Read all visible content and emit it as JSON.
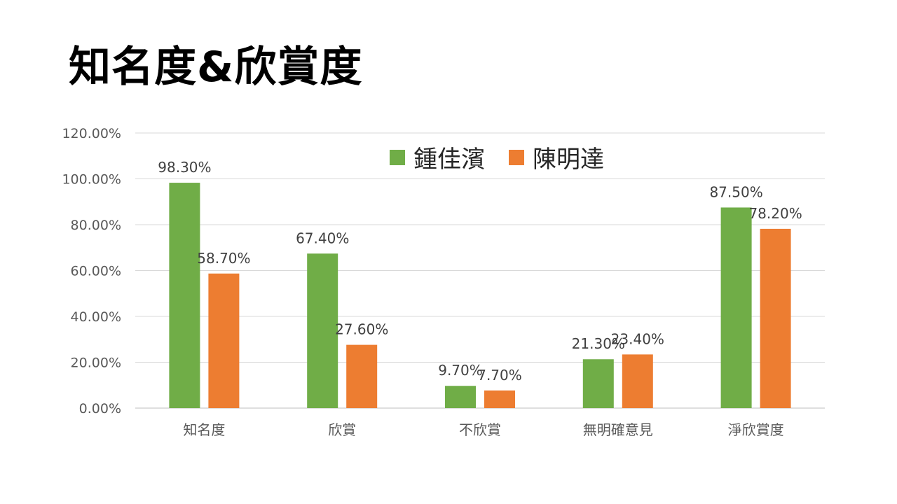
{
  "page": {
    "title": "知名度&欣賞度"
  },
  "chart_data": {
    "type": "bar",
    "title": "",
    "xlabel": "",
    "ylabel": "",
    "categories": [
      "知名度",
      "欣賞",
      "不欣賞",
      "無明確意見",
      "淨欣賞度"
    ],
    "series": [
      {
        "name": "鍾佳濱",
        "color": "#70AD47",
        "values": [
          98.3,
          67.4,
          9.7,
          21.3,
          87.5
        ]
      },
      {
        "name": "陳明達",
        "color": "#ED7D31",
        "values": [
          58.7,
          27.6,
          7.7,
          23.4,
          78.2
        ]
      }
    ],
    "data_labels": [
      [
        "98.30%",
        "67.40%",
        "9.70%",
        "21.30%",
        "87.50%"
      ],
      [
        "58.70%",
        "27.60%",
        "7.70%",
        "23.40%",
        "78.20%"
      ]
    ],
    "ylim": [
      0,
      120
    ],
    "y_ticks": [
      0,
      20,
      40,
      60,
      80,
      100,
      120
    ],
    "y_tick_labels": [
      "0.00%",
      "20.00%",
      "40.00%",
      "60.00%",
      "80.00%",
      "100.00%",
      "120.00%"
    ],
    "grid": true,
    "legend_position": "top-center"
  }
}
